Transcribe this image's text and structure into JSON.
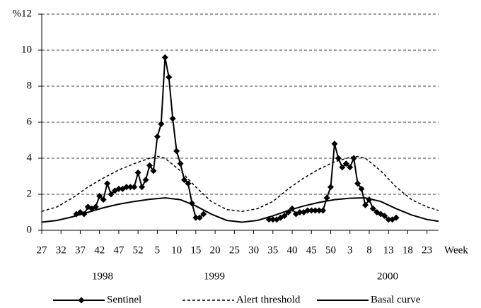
{
  "chart_data": {
    "type": "line",
    "x_label": "Week",
    "xlim": [
      0,
      103
    ],
    "xticks": [
      {
        "value": 0,
        "label": "27"
      },
      {
        "value": 5,
        "label": "32"
      },
      {
        "value": 10,
        "label": "37"
      },
      {
        "value": 15,
        "label": "42"
      },
      {
        "value": 20,
        "label": "47"
      },
      {
        "value": 25,
        "label": "52"
      },
      {
        "value": 30,
        "label": "5"
      },
      {
        "value": 35,
        "label": "10"
      },
      {
        "value": 40,
        "label": "15"
      },
      {
        "value": 45,
        "label": "20"
      },
      {
        "value": 50,
        "label": "25"
      },
      {
        "value": 55,
        "label": "30"
      },
      {
        "value": 60,
        "label": "35"
      },
      {
        "value": 65,
        "label": "40"
      },
      {
        "value": 70,
        "label": "45"
      },
      {
        "value": 75,
        "label": "50"
      },
      {
        "value": 80,
        "label": "3"
      },
      {
        "value": 85,
        "label": "8"
      },
      {
        "value": 90,
        "label": "13"
      },
      {
        "value": 95,
        "label": "18"
      },
      {
        "value": 100,
        "label": "23"
      }
    ],
    "year_labels": [
      "1998",
      "1999",
      "2000"
    ],
    "ylim": [
      0,
      12
    ],
    "yticks": [
      0,
      2,
      4,
      6,
      8,
      10,
      {
        "value": 12,
        "label": "%12"
      }
    ],
    "grid": true,
    "series": [
      {
        "name": "Sentinel",
        "color": "#000000",
        "marker": "diamond",
        "dashed": false,
        "x": [
          9,
          10,
          11,
          12,
          13,
          14,
          15,
          16,
          17,
          18,
          19,
          20,
          21,
          22,
          23,
          24,
          25,
          26,
          27,
          28,
          29,
          30,
          31,
          32,
          33,
          34,
          35,
          36,
          37,
          38,
          39,
          40,
          41,
          42,
          43,
          44,
          45,
          46,
          47,
          48,
          49,
          50,
          51,
          52,
          53,
          54,
          55,
          56,
          57,
          58,
          59,
          60,
          61,
          62,
          63,
          64,
          65,
          66,
          67,
          68,
          69,
          70,
          71,
          72,
          73,
          74,
          75,
          76,
          77,
          78,
          79,
          80,
          81,
          82,
          83,
          84,
          85,
          86,
          87,
          88,
          89,
          90,
          91,
          92
        ],
        "values": [
          0.9,
          1.0,
          0.9,
          1.3,
          1.2,
          1.3,
          1.9,
          1.7,
          2.6,
          2.0,
          2.2,
          2.3,
          2.3,
          2.4,
          2.4,
          2.4,
          3.2,
          2.4,
          2.8,
          3.6,
          3.3,
          5.2,
          5.9,
          9.6,
          8.5,
          6.2,
          4.4,
          3.7,
          2.8,
          2.6,
          1.5,
          0.7,
          0.7,
          0.9,
          null,
          null,
          null,
          null,
          null,
          null,
          null,
          null,
          null,
          null,
          null,
          null,
          null,
          null,
          null,
          null,
          0.6,
          0.6,
          0.6,
          0.7,
          0.8,
          1.0,
          1.2,
          0.9,
          1.0,
          1.0,
          1.1,
          1.1,
          1.1,
          1.1,
          1.1,
          1.8,
          2.4,
          4.8,
          4.0,
          3.5,
          3.7,
          3.5,
          4.0,
          2.6,
          2.3,
          1.4,
          1.7,
          1.2,
          1.0,
          0.9,
          0.8,
          0.6,
          0.6,
          0.7
        ]
      },
      {
        "name": "Alert threshold",
        "color": "#000000",
        "dashed": true,
        "x": [
          0,
          4,
          8,
          12,
          16,
          20,
          24,
          28,
          30,
          32,
          36,
          40,
          44,
          48,
          52,
          56,
          60,
          64,
          68,
          72,
          76,
          80,
          82,
          84,
          88,
          92,
          96,
          100,
          103
        ],
        "values": [
          1.05,
          1.3,
          1.8,
          2.4,
          2.9,
          3.35,
          3.7,
          4.0,
          4.1,
          4.0,
          3.3,
          2.4,
          1.6,
          1.15,
          1.05,
          1.2,
          1.6,
          2.3,
          2.9,
          3.4,
          3.8,
          4.05,
          4.1,
          4.0,
          3.3,
          2.4,
          1.7,
          1.3,
          1.1
        ]
      },
      {
        "name": "Basal curve",
        "color": "#000000",
        "dashed": false,
        "x": [
          0,
          4,
          8,
          12,
          16,
          20,
          24,
          28,
          32,
          36,
          40,
          44,
          48,
          52,
          56,
          60,
          64,
          68,
          72,
          76,
          80,
          84,
          88,
          92,
          96,
          100,
          103
        ],
        "values": [
          0.45,
          0.55,
          0.75,
          1.0,
          1.25,
          1.45,
          1.6,
          1.72,
          1.8,
          1.7,
          1.35,
          0.9,
          0.55,
          0.45,
          0.55,
          0.8,
          1.1,
          1.35,
          1.55,
          1.7,
          1.78,
          1.8,
          1.6,
          1.2,
          0.85,
          0.6,
          0.5
        ]
      }
    ]
  }
}
